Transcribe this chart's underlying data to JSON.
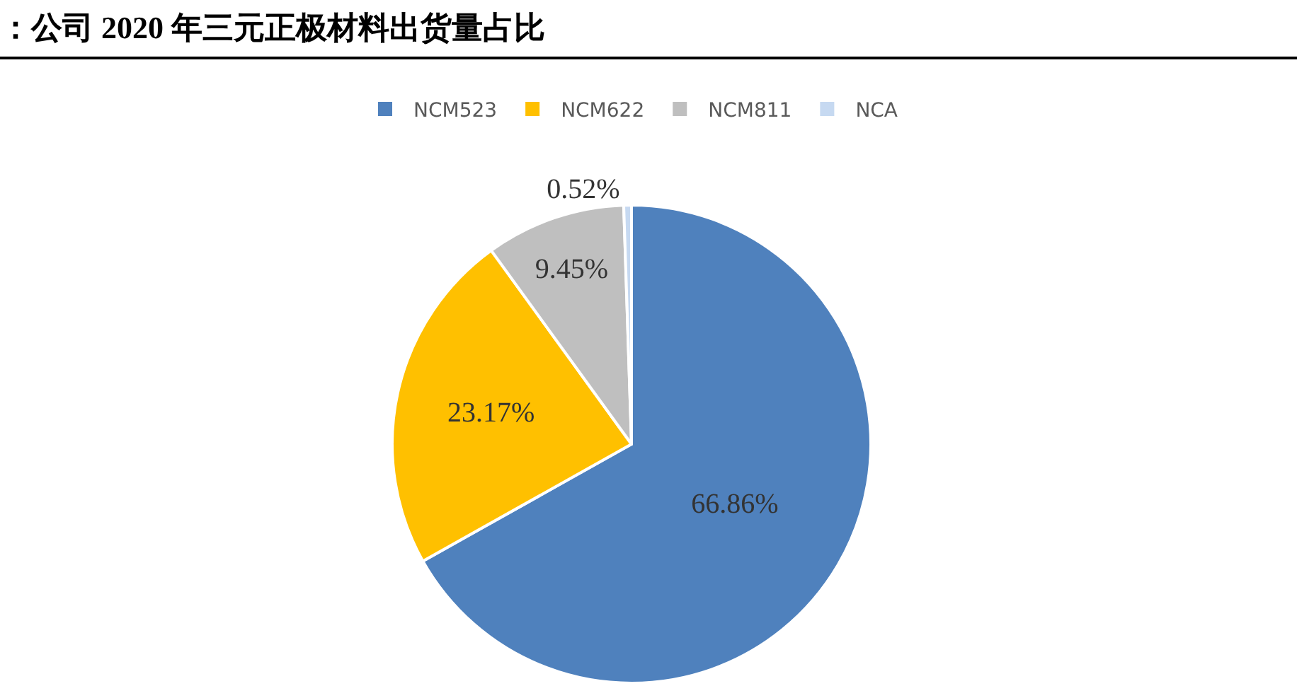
{
  "chart_data": {
    "type": "pie",
    "title": "：公司 2020 年三元正极材料出货量占比",
    "categories": [
      "NCM523",
      "NCM622",
      "NCM811",
      "NCA"
    ],
    "values": [
      66.86,
      23.17,
      9.45,
      0.52
    ],
    "value_labels": [
      "66.86%",
      "23.17%",
      "9.45%",
      "0.52%"
    ],
    "colors": [
      "#4f81bd",
      "#ffc000",
      "#bfbfbf",
      "#c6d9f1"
    ],
    "legend": "top"
  }
}
